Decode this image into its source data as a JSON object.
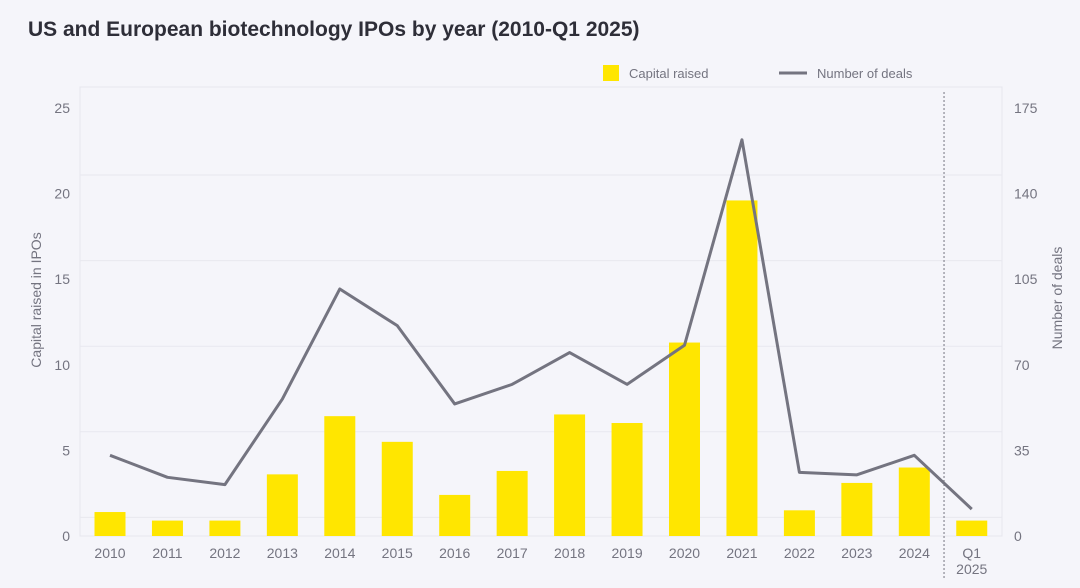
{
  "chart_data": {
    "type": "bar+line",
    "title": "US and European biotechnology IPOs by year (2010-Q1 2025)",
    "categories": [
      "2010",
      "2011",
      "2012",
      "2013",
      "2014",
      "2015",
      "2016",
      "2017",
      "2018",
      "2019",
      "2020",
      "2021",
      "2022",
      "2023",
      "2024",
      "Q1\n2025"
    ],
    "series": [
      {
        "name": "Capital raised",
        "type": "bar",
        "axis": "left",
        "color": "#ffe600",
        "values": [
          1.4,
          0.9,
          0.9,
          3.6,
          7.0,
          5.5,
          2.4,
          3.8,
          7.1,
          6.6,
          11.3,
          19.6,
          1.5,
          3.1,
          4.0,
          0.9
        ]
      },
      {
        "name": "Number of deals",
        "type": "line",
        "axis": "right",
        "color": "#747480",
        "values": [
          33,
          24,
          21,
          56,
          101,
          86,
          54,
          62,
          75,
          62,
          78,
          162,
          26,
          25,
          33,
          11
        ]
      }
    ],
    "ylabel": "Capital raised in IPOs",
    "ylabel_right": "Number of deals",
    "ylim": [
      0,
      25
    ],
    "ylim_right": [
      0,
      175
    ],
    "yticks": [
      "0",
      "5",
      "10",
      "15",
      "20",
      "25"
    ],
    "yticks_right": [
      "0",
      "35",
      "70",
      "105",
      "140",
      "175"
    ],
    "legend": {
      "position": "top-right",
      "labels": [
        "Capital raised",
        "Number of deals"
      ]
    },
    "grid": true
  }
}
